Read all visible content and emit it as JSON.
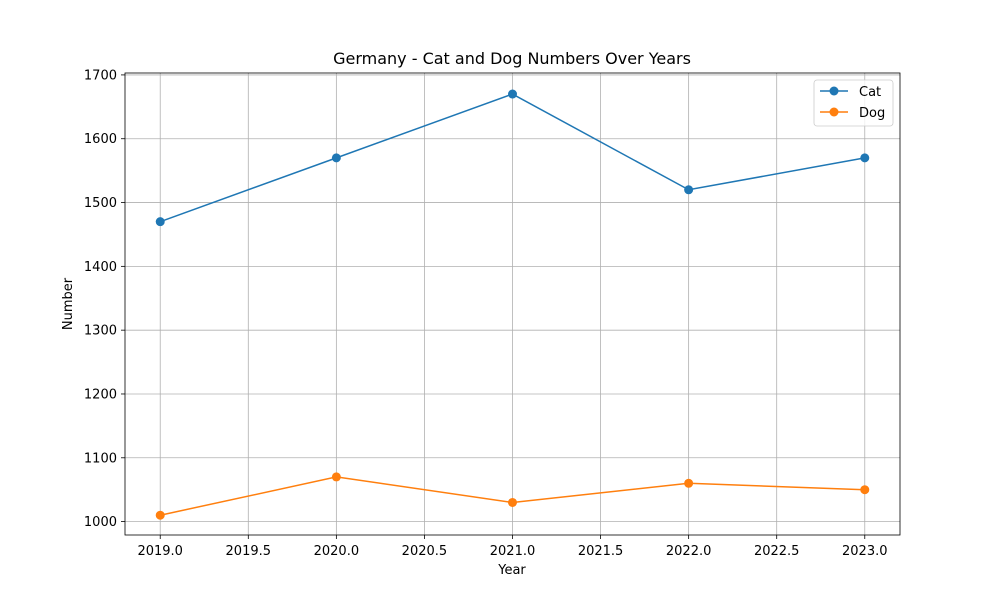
{
  "chart_data": {
    "type": "line",
    "title": "Germany - Cat and Dog Numbers Over Years",
    "xlabel": "Year",
    "ylabel": "Number",
    "x": [
      2019,
      2020,
      2021,
      2022,
      2023
    ],
    "xticks": [
      "2019.0",
      "2019.5",
      "2020.0",
      "2020.5",
      "2021.0",
      "2021.5",
      "2022.0",
      "2022.5",
      "2023.0"
    ],
    "xtick_values": [
      2019.0,
      2019.5,
      2020.0,
      2020.5,
      2021.0,
      2021.5,
      2022.0,
      2022.5,
      2023.0
    ],
    "yticks": [
      "1000",
      "1100",
      "1200",
      "1300",
      "1400",
      "1500",
      "1600",
      "1700"
    ],
    "ytick_values": [
      1000,
      1100,
      1200,
      1300,
      1400,
      1500,
      1600,
      1700
    ],
    "xlim": [
      2018.8,
      2023.2
    ],
    "ylim": [
      979,
      1703
    ],
    "grid": true,
    "legend_position": "top-right",
    "series": [
      {
        "name": "Cat",
        "values": [
          1470,
          1570,
          1670,
          1520,
          1570
        ],
        "color": "#1f77b4",
        "marker": "circle"
      },
      {
        "name": "Dog",
        "values": [
          1010,
          1070,
          1030,
          1060,
          1050
        ],
        "color": "#ff7f0e",
        "marker": "circle"
      }
    ]
  }
}
